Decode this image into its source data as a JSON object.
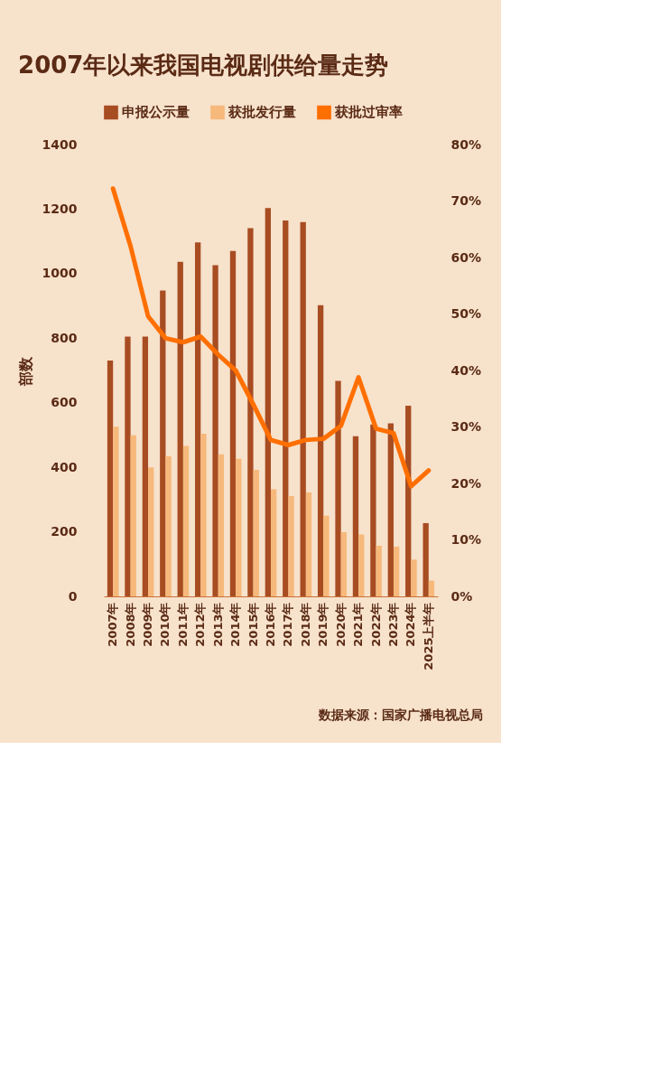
{
  "chart_data": {
    "type": "bar",
    "title": "2007年以来我国电视剧供给量走势",
    "categories": [
      "2007年",
      "2008年",
      "2009年",
      "2010年",
      "2011年",
      "2012年",
      "2013年",
      "2014年",
      "2015年",
      "2016年",
      "2017年",
      "2018年",
      "2019年",
      "2020年",
      "2021年",
      "2022年",
      "2023年",
      "2024年",
      "2025上半年"
    ],
    "series": [
      {
        "name": "申报公示量",
        "color": "#a84c22",
        "values": [
          731,
          805,
          805,
          948,
          1037,
          1097,
          1026,
          1070,
          1141,
          1203,
          1165,
          1160,
          902,
          668,
          496,
          533,
          536,
          591,
          227
        ]
      },
      {
        "name": "获批发行量",
        "color": "#f6b97b",
        "values": [
          526,
          499,
          400,
          434,
          466,
          504,
          440,
          426,
          392,
          332,
          311,
          322,
          250,
          199,
          192,
          157,
          154,
          114,
          49
        ]
      },
      {
        "name": "获批过审率",
        "color": "#ff6f00",
        "type": "line",
        "axis": "y2",
        "values": [
          72.2,
          62.0,
          49.6,
          45.7,
          45.0,
          46.0,
          42.8,
          40.0,
          34.0,
          27.7,
          26.8,
          27.7,
          27.9,
          30.2,
          38.8,
          29.7,
          28.9,
          19.5,
          22.3
        ]
      }
    ],
    "ylabel": "部数",
    "ylim": [
      0,
      1400
    ],
    "yticks": [
      0,
      200,
      400,
      600,
      800,
      1000,
      1200,
      1400
    ],
    "y2lim": [
      0,
      80
    ],
    "y2ticks": [
      {
        "value": 0,
        "label": "0%"
      },
      {
        "value": 10,
        "label": "10%"
      },
      {
        "value": 20,
        "label": "20%"
      },
      {
        "value": 30,
        "label": "30%"
      },
      {
        "value": 40,
        "label": "40%"
      },
      {
        "value": 50,
        "label": "50%"
      },
      {
        "value": 60,
        "label": "60%"
      },
      {
        "value": 70,
        "label": "70%"
      },
      {
        "value": 80,
        "label": "80%"
      }
    ],
    "grid": false,
    "legend": "top",
    "marker": "none",
    "line_style": "solid",
    "annotations": [
      "数据来源：国家广播电视总局"
    ]
  }
}
